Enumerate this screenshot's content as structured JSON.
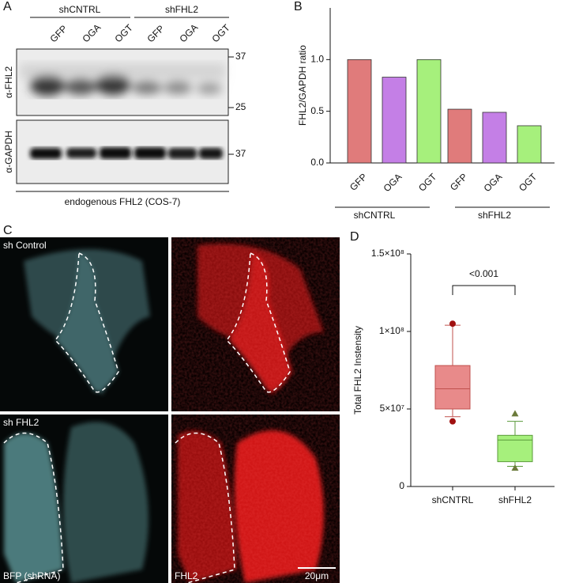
{
  "panel_labels": [
    "A",
    "B",
    "C",
    "D"
  ],
  "blot": {
    "groups": [
      "shCNTRL",
      "shFHL2"
    ],
    "lanes": [
      "GFP",
      "OGA",
      "OGT",
      "GFP",
      "OGA",
      "OGT"
    ],
    "markers": [
      37,
      25,
      37
    ],
    "antibodies": [
      "α-FHL2",
      "α-GAPDH"
    ],
    "caption": "endogenous FHL2 (COS-7)"
  },
  "microscopy": {
    "rows": [
      "sh Control",
      "sh FHL2"
    ],
    "channels": [
      "BFP (shRNA)",
      "FHL2"
    ],
    "scale_bar": "20μm"
  },
  "chart_data": [
    {
      "type": "bar",
      "categories": [
        "GFP",
        "OGA",
        "OGT",
        "GFP",
        "OGA",
        "OGT"
      ],
      "values": [
        1.0,
        0.83,
        1.0,
        0.52,
        0.49,
        0.36
      ],
      "colors": [
        "#e07b7b",
        "#c47fe6",
        "#a6f07c",
        "#e07b7b",
        "#c47fe6",
        "#a6f07c"
      ],
      "groups": [
        "shCNTRL",
        "shFHL2"
      ],
      "y_label": "FHL2/GAPDH ratio",
      "ylim": [
        0,
        1.5
      ],
      "yticks": [
        {
          "value": 0,
          "label": "0.0"
        },
        0.5,
        {
          "value": 1,
          "label": "1.0"
        }
      ]
    },
    {
      "type": "box",
      "categories": [
        "shCNTRL",
        "shFHL2"
      ],
      "boxes": [
        {
          "min": 45000000,
          "q1": 50000000,
          "median": 63000000,
          "q3": 78000000,
          "max": 104000000,
          "outliers": [
            42000000,
            105000000
          ]
        },
        {
          "min": 13000000,
          "q1": 16000000,
          "median": 30000000,
          "q3": 33000000,
          "max": 42000000,
          "outliers": [
            12000000,
            47000000
          ]
        }
      ],
      "colors": [
        "#e88a8a",
        "#a6f07c"
      ],
      "edge_colors": [
        "#c0504d",
        "#5a9a3a"
      ],
      "marker_colors": [
        "#a01010",
        "#6b7a3a"
      ],
      "markers": [
        "circle",
        "triangle"
      ],
      "y_label": "Total FHL2 Instensity",
      "ylim": [
        0,
        150000000
      ],
      "yticks": [
        0,
        {
          "value": 50000000,
          "label": "5×10⁷"
        },
        {
          "value": 100000000,
          "label": "1×10⁸"
        },
        {
          "value": 150000000,
          "label": "1.5×10⁸"
        }
      ],
      "annotation": "<0.001"
    }
  ]
}
